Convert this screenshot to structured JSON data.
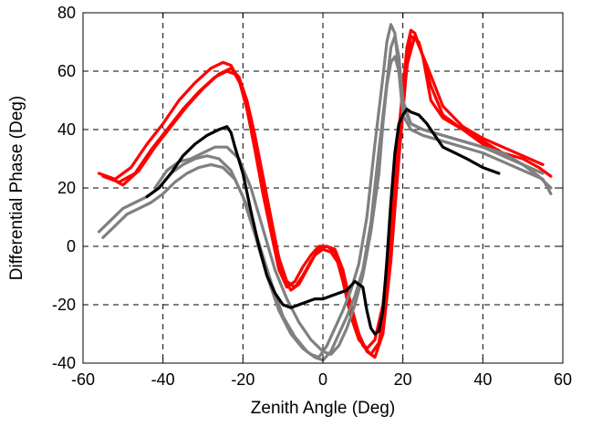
{
  "chart_data": {
    "type": "line",
    "title": "",
    "xlabel": "Zenith Angle (Deg)",
    "ylabel": "Differential Phase (Deg)",
    "xlim": [
      -60,
      60
    ],
    "ylim": [
      -40,
      80
    ],
    "xticks": [
      -60,
      -40,
      -20,
      0,
      20,
      40,
      60
    ],
    "yticks": [
      -40,
      -20,
      0,
      20,
      40,
      60,
      80
    ],
    "grid": true,
    "series": [
      {
        "color": "#ff0000",
        "x": [
          -56,
          -52,
          -48,
          -44,
          -40,
          -36,
          -32,
          -28,
          -25,
          -23,
          -21,
          -19,
          -17,
          -15,
          -13,
          -11,
          -9,
          -7,
          -5,
          -3,
          -1,
          1,
          3,
          5,
          7,
          9,
          11,
          13,
          15,
          17,
          19,
          21,
          22,
          23,
          25,
          27,
          30,
          35,
          40,
          45,
          50,
          54,
          57
        ],
        "y": [
          25,
          23,
          27,
          35,
          42,
          50,
          56,
          61,
          63,
          62,
          57,
          47,
          33,
          18,
          5,
          -8,
          -14,
          -12,
          -7,
          -3,
          0,
          0,
          -2,
          -12,
          -24,
          -32,
          -35,
          -32,
          -20,
          5,
          40,
          68,
          74,
          73,
          65,
          50,
          44,
          40,
          36,
          32,
          30,
          27,
          24
        ]
      },
      {
        "color": "#ff0000",
        "x": [
          -55,
          -51,
          -47,
          -43,
          -39,
          -35,
          -31,
          -27,
          -24,
          -22,
          -20,
          -18,
          -16,
          -14,
          -12,
          -10,
          -8,
          -6,
          -4,
          -2,
          0,
          2,
          4,
          6,
          8,
          10,
          12,
          14,
          16,
          18,
          20,
          22,
          24,
          27,
          30,
          35,
          40,
          45,
          50
        ],
        "y": [
          24,
          22,
          25,
          33,
          40,
          47,
          53,
          58,
          60,
          59,
          54,
          44,
          30,
          15,
          2,
          -10,
          -15,
          -13,
          -8,
          -3,
          -1,
          -2,
          -6,
          -16,
          -26,
          -34,
          -37,
          -33,
          -15,
          15,
          50,
          72,
          70,
          55,
          45,
          40,
          35,
          31,
          28
        ]
      },
      {
        "color": "#ff0000",
        "x": [
          -54,
          -50,
          -46,
          -42,
          -38,
          -34,
          -30,
          -26,
          -23,
          -21,
          -19,
          -17,
          -15,
          -13,
          -11,
          -9,
          -7,
          -5,
          -3,
          -1,
          1,
          3,
          5,
          7,
          9,
          11,
          13,
          15,
          17,
          19,
          21,
          23,
          26,
          30,
          35,
          40,
          45,
          50,
          55
        ],
        "y": [
          24,
          21,
          26,
          34,
          41,
          48,
          54,
          59,
          61,
          58,
          50,
          38,
          24,
          10,
          -4,
          -12,
          -14,
          -10,
          -5,
          -1,
          0,
          -1,
          -8,
          -20,
          -30,
          -36,
          -38,
          -30,
          -5,
          30,
          62,
          72,
          62,
          48,
          41,
          37,
          34,
          31,
          28
        ]
      },
      {
        "color": "#808080",
        "x": [
          -56,
          -53,
          -50,
          -47,
          -44,
          -41,
          -38,
          -35,
          -32,
          -29,
          -26,
          -23,
          -20,
          -17,
          -14,
          -11,
          -8,
          -5,
          -3,
          -1,
          1,
          3,
          5,
          7,
          9,
          11,
          13,
          15,
          16,
          17,
          18,
          19,
          20,
          22,
          25,
          30,
          35,
          40,
          45,
          50,
          55,
          57
        ],
        "y": [
          5,
          9,
          13,
          15,
          17,
          20,
          25,
          28,
          30,
          31,
          30,
          26,
          17,
          4,
          -10,
          -22,
          -30,
          -35,
          -37,
          -38,
          -34,
          -28,
          -22,
          -15,
          -6,
          10,
          35,
          58,
          70,
          76,
          73,
          60,
          45,
          40,
          38,
          36,
          34,
          32,
          29,
          26,
          23,
          18
        ]
      },
      {
        "color": "#808080",
        "x": [
          -55,
          -52,
          -49,
          -46,
          -43,
          -40,
          -37,
          -34,
          -31,
          -28,
          -25,
          -22,
          -19,
          -16,
          -13,
          -10,
          -7,
          -4,
          -2,
          0,
          2,
          4,
          6,
          8,
          10,
          12,
          14,
          16,
          17,
          18,
          19,
          20,
          22,
          25,
          30,
          35,
          40,
          45,
          50,
          55
        ],
        "y": [
          3,
          7,
          11,
          13,
          15,
          18,
          22,
          25,
          27,
          28,
          27,
          23,
          14,
          1,
          -12,
          -24,
          -31,
          -36,
          -38,
          -39,
          -36,
          -30,
          -24,
          -17,
          -8,
          8,
          33,
          56,
          68,
          72,
          65,
          50,
          42,
          40,
          38,
          36,
          34,
          31,
          28,
          25
        ]
      },
      {
        "color": "#808080",
        "x": [
          -42,
          -39,
          -36,
          -33,
          -30,
          -27,
          -24,
          -21,
          -18,
          -15,
          -12,
          -9,
          -6,
          -3,
          0,
          2,
          4,
          6,
          8,
          10,
          12,
          14,
          15,
          16,
          17,
          18,
          19,
          20,
          22,
          25,
          30,
          35,
          40,
          45,
          50,
          54,
          57
        ],
        "y": [
          20,
          26,
          29,
          30,
          32,
          34,
          34,
          30,
          20,
          6,
          -8,
          -18,
          -26,
          -32,
          -36,
          -37,
          -34,
          -28,
          -20,
          -10,
          5,
          25,
          42,
          55,
          63,
          65,
          60,
          48,
          42,
          40,
          38,
          36,
          34,
          32,
          28,
          24,
          20
        ]
      },
      {
        "color": "#000000",
        "x": [
          -44,
          -41,
          -38,
          -35,
          -32,
          -29,
          -26,
          -24,
          -23,
          -22,
          -20,
          -18,
          -16,
          -14,
          -12,
          -10,
          -8,
          -6,
          -4,
          -2,
          0,
          2,
          4,
          6,
          8,
          10,
          11,
          12,
          13,
          14,
          15,
          16,
          17,
          18,
          19,
          20,
          21,
          22,
          24,
          26,
          28,
          30,
          33,
          36,
          40,
          44
        ],
        "y": [
          17,
          20,
          25,
          31,
          35,
          38,
          40,
          41,
          39,
          34,
          25,
          12,
          0,
          -10,
          -16,
          -20,
          -21,
          -20,
          -19,
          -18,
          -18,
          -17,
          -16,
          -15,
          -12,
          -14,
          -22,
          -28,
          -30,
          -29,
          -22,
          -5,
          15,
          32,
          42,
          45,
          47,
          46,
          45,
          42,
          38,
          34,
          32,
          30,
          27,
          25
        ]
      }
    ]
  }
}
